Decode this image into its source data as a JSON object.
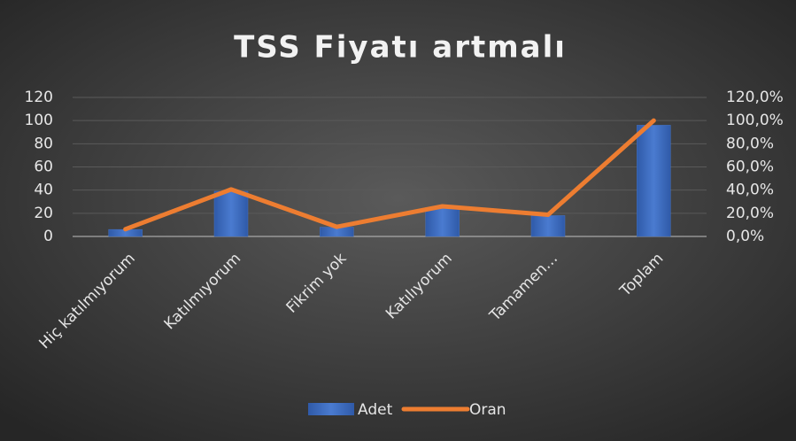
{
  "chart_data": {
    "type": "bar_line",
    "title": "TSS Fiyatı artmalı",
    "categories": [
      "Hiç katılmıyorum",
      "Katılmıyorum",
      "Fikrim yok",
      "Katılıyorum",
      "Tamamen…",
      "Toplam"
    ],
    "series": [
      {
        "name": "Adet",
        "type": "bar",
        "color": "#4472c4",
        "values": [
          6,
          39,
          8,
          25,
          18,
          96
        ]
      },
      {
        "name": "Oran",
        "type": "line",
        "axis": "y2",
        "color": "#ed7d31",
        "values": [
          6.25,
          40.6,
          8.3,
          26.0,
          18.75,
          100
        ]
      }
    ],
    "ylim": [
      0,
      120
    ],
    "yticks": [
      0,
      20,
      40,
      60,
      80,
      100,
      120
    ],
    "y2lim": [
      0,
      120
    ],
    "y2ticks": [
      {
        "value": 0,
        "label": "0,0%"
      },
      {
        "value": 20,
        "label": "20,0%"
      },
      {
        "value": 40,
        "label": "40,0%"
      },
      {
        "value": 60,
        "label": "60,0%"
      },
      {
        "value": 80,
        "label": "80,0%"
      },
      {
        "value": 100,
        "label": "100,0%"
      },
      {
        "value": 120,
        "label": "120,0%"
      }
    ],
    "grid": true,
    "legend": "bottom"
  }
}
